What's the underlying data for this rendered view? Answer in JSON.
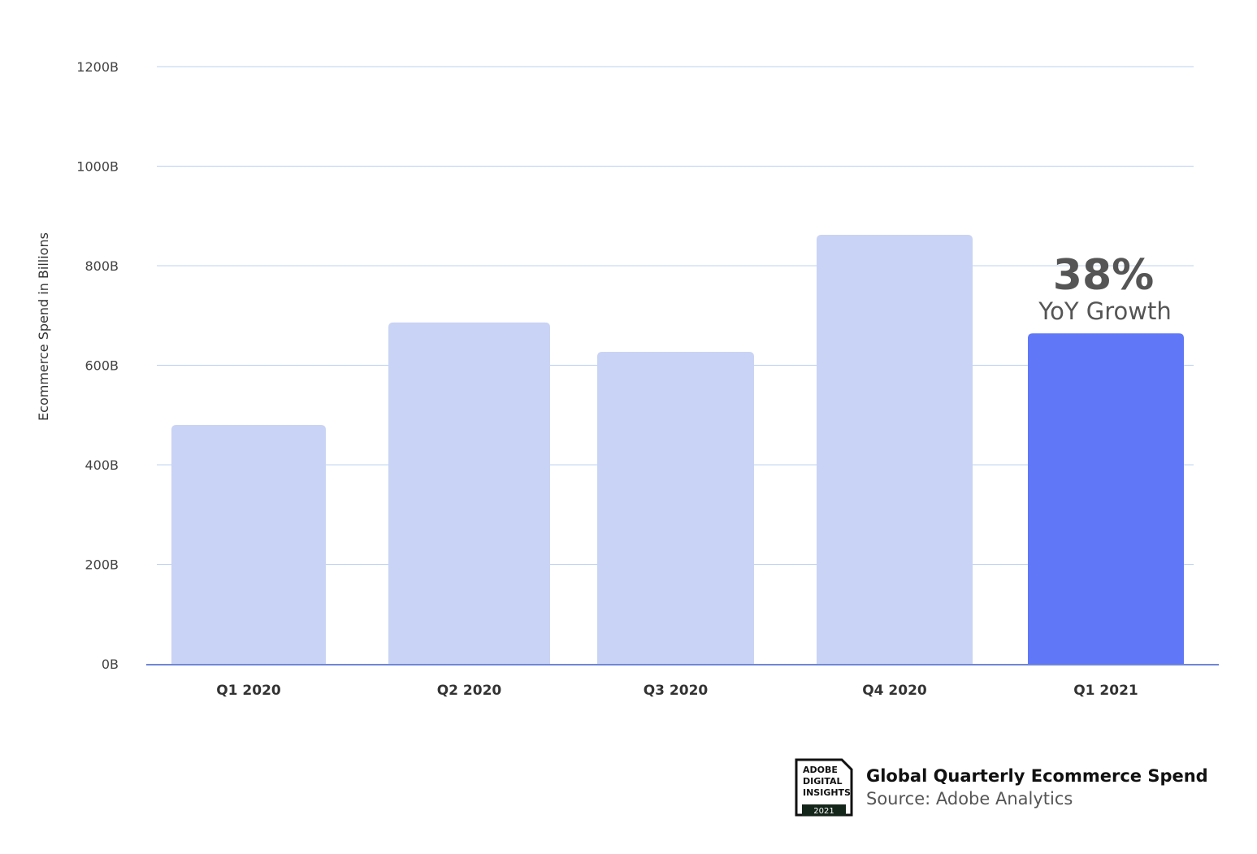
{
  "chart_data": {
    "type": "bar",
    "title": "Global Quarterly Ecommerce Spend",
    "source": "Source: Adobe Analytics",
    "xlabel": "",
    "ylabel": "Ecommerce Spend in Billions",
    "categories": [
      "Q1 2020",
      "Q2 2020",
      "Q3 2020",
      "Q4 2020",
      "Q1 2021"
    ],
    "values": [
      480,
      686,
      627,
      862,
      664
    ],
    "highlight_index": 4,
    "ylim": [
      0,
      1200
    ],
    "yticks": [
      0,
      200,
      400,
      600,
      800,
      1000,
      1200
    ],
    "ytick_labels": [
      "0B",
      "200B",
      "400B",
      "600B",
      "800B",
      "1000B",
      "1200B"
    ],
    "grid": true,
    "annotation": {
      "value": "38%",
      "label": "YoY Growth"
    },
    "colors": {
      "bar": "#c9d3f5",
      "highlight": "#6078f8",
      "grid": "#bcd0f2",
      "axis": "#6f86d8",
      "annotation": "#555555"
    }
  },
  "logo": {
    "lines": [
      "ADOBE",
      "DIGITAL",
      "INSIGHTS"
    ],
    "year": "2021"
  }
}
